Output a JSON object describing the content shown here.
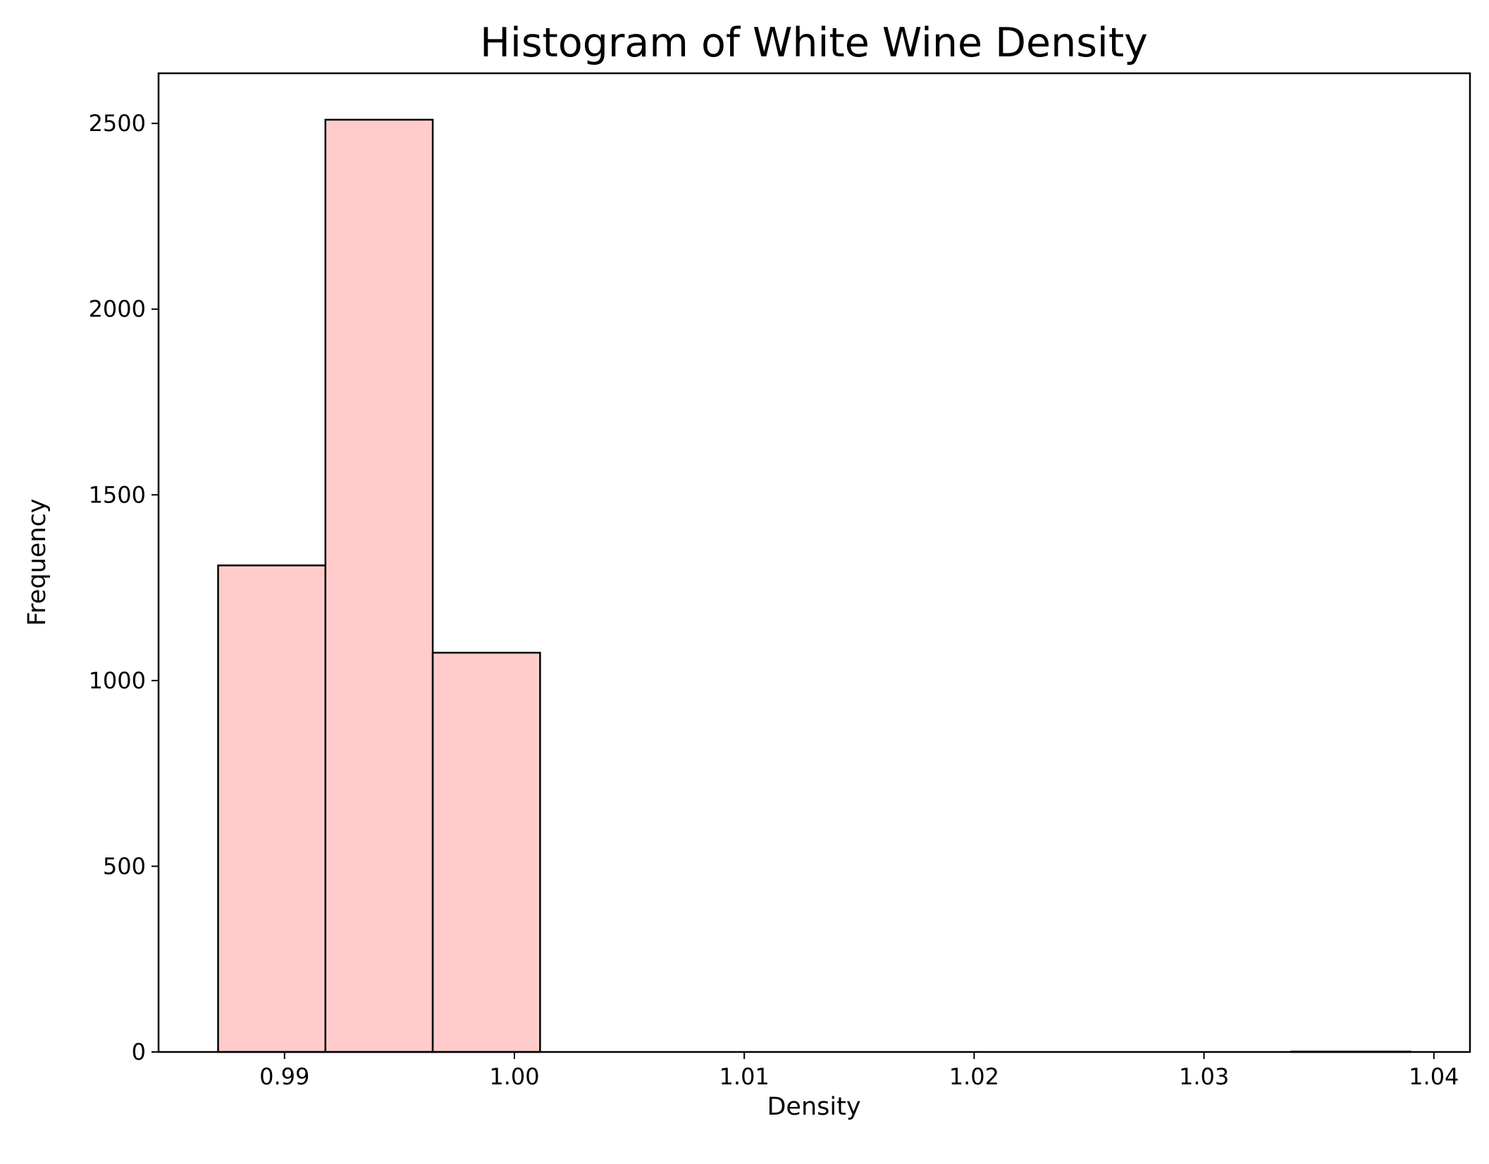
{
  "chart_data": {
    "type": "bar",
    "subtype": "histogram",
    "title": "Histogram of White Wine Density",
    "xlabel": "Density",
    "ylabel": "Frequency",
    "bins": [
      {
        "x0": 0.98711,
        "x1": 0.991779,
        "count": 1310
      },
      {
        "x0": 0.991779,
        "x1": 0.996448,
        "count": 2510
      },
      {
        "x0": 0.996448,
        "x1": 1.001117,
        "count": 1075
      },
      {
        "x0": 1.001117,
        "x1": 1.005786,
        "count": 0
      },
      {
        "x0": 1.005786,
        "x1": 1.010455,
        "count": 0
      },
      {
        "x0": 1.010455,
        "x1": 1.015124,
        "count": 0
      },
      {
        "x0": 1.015124,
        "x1": 1.019793,
        "count": 0
      },
      {
        "x0": 1.019793,
        "x1": 1.024462,
        "count": 0
      },
      {
        "x0": 1.024462,
        "x1": 1.029131,
        "count": 0
      },
      {
        "x0": 1.029131,
        "x1": 1.0338,
        "count": 0
      },
      {
        "x0": 1.0338,
        "x1": 1.03898,
        "count": 1
      }
    ],
    "xlim": [
      0.98452,
      1.04157
    ],
    "ylim": [
      0,
      2635
    ],
    "xticks": [
      0.99,
      1.0,
      1.01,
      1.02,
      1.03,
      1.04
    ],
    "xtick_labels": [
      "0.99",
      "1.00",
      "1.01",
      "1.02",
      "1.03",
      "1.04"
    ],
    "yticks": [
      0,
      500,
      1000,
      1500,
      2000,
      2500
    ],
    "ytick_labels": [
      "0",
      "500",
      "1000",
      "1500",
      "2000",
      "2500"
    ],
    "bar_fill": "#ffcccb",
    "bar_edge": "#000000",
    "grid": false,
    "legend": "none"
  }
}
